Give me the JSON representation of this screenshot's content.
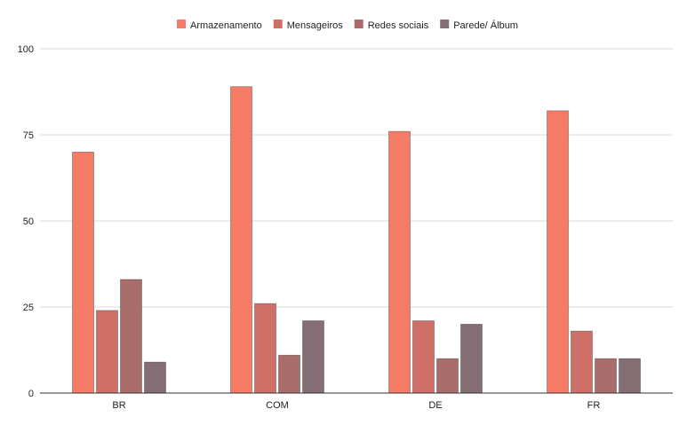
{
  "chart_data": {
    "type": "bar",
    "title": "",
    "xlabel": "",
    "ylabel": "",
    "categories": [
      "BR",
      "COM",
      "DE",
      "FR"
    ],
    "series": [
      {
        "name": "Armazenamento",
        "color": "#f47c67",
        "values": [
          70,
          89,
          76,
          82
        ]
      },
      {
        "name": "Mensageiros",
        "color": "#cf7068",
        "values": [
          24,
          26,
          21,
          18
        ]
      },
      {
        "name": "Redes sociais",
        "color": "#a96e6b",
        "values": [
          33,
          11,
          10,
          10
        ]
      },
      {
        "name": "Parede/ Álbum",
        "color": "#856d74",
        "values": [
          9,
          21,
          20,
          10
        ]
      }
    ],
    "ylim": [
      0,
      100
    ],
    "yticks": [
      0,
      25,
      50,
      75,
      100
    ],
    "grid": true,
    "legend": "top-center"
  }
}
